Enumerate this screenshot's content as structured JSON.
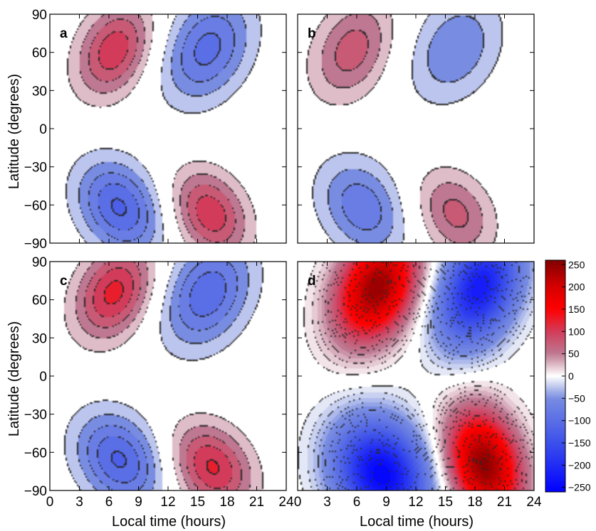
{
  "chart_data": {
    "type": "heatmap",
    "subtype": "filled-contour",
    "xlabel": "Local time (hours)",
    "ylabel": "Latitude (degrees)",
    "xlim": [
      0,
      24
    ],
    "ylim": [
      -90,
      90
    ],
    "xticks": [
      0,
      3,
      6,
      9,
      12,
      15,
      18,
      21,
      24
    ],
    "yticks": [
      90,
      60,
      30,
      0,
      -30,
      -60,
      -90
    ],
    "xtick_labels": [
      "0",
      "3",
      "6",
      "9",
      "12",
      "15",
      "18",
      "21",
      "24"
    ],
    "ytick_labels": [
      "90",
      "60",
      "30",
      "0",
      "−30",
      "−60",
      "−90"
    ],
    "colorbar": {
      "min": -260,
      "max": 260,
      "ticks": [
        250,
        200,
        150,
        100,
        50,
        0,
        -50,
        -100,
        -150,
        -200,
        -250
      ],
      "tick_labels": [
        "250",
        "200",
        "150",
        "100",
        "50",
        "0",
        "−50",
        "−100",
        "−150",
        "−200",
        "−250"
      ],
      "colors": {
        "max": "#800000",
        "pos_mid": "#ff0000",
        "pos_low": "#c43c5a",
        "pos_faint": "#b07888",
        "zero": "#ffffff",
        "neg_faint": "#8888cc",
        "neg_mid": "#3344ee",
        "min": "#0000ff"
      }
    },
    "panels": [
      {
        "letter": "a",
        "blobs": [
          {
            "sign": 1,
            "lt": 6.5,
            "lat": 62,
            "slt": 2.6,
            "slat": 26,
            "amp": 120,
            "skew": -0.03
          },
          {
            "sign": -1,
            "lt": 16.0,
            "lat": 63,
            "slt": 3.1,
            "slat": 30,
            "amp": 110,
            "skew": -0.03
          },
          {
            "sign": -1,
            "lt": 7.0,
            "lat": -62,
            "slt": 2.9,
            "slat": 26,
            "amp": 130,
            "skew": 0.03
          },
          {
            "sign": 1,
            "lt": 16.3,
            "lat": -67,
            "slt": 2.6,
            "slat": 24,
            "amp": 120,
            "skew": 0.03
          }
        ]
      },
      {
        "letter": "b",
        "blobs": [
          {
            "sign": 1,
            "lt": 5.5,
            "lat": 62,
            "slt": 2.8,
            "slat": 28,
            "amp": 90,
            "skew": -0.03
          },
          {
            "sign": -1,
            "lt": 16.0,
            "lat": 63,
            "slt": 3.2,
            "slat": 30,
            "amp": 75,
            "skew": -0.03
          },
          {
            "sign": -1,
            "lt": 6.5,
            "lat": -62,
            "slt": 3.0,
            "slat": 27,
            "amp": 95,
            "skew": 0.03
          },
          {
            "sign": 1,
            "lt": 16.0,
            "lat": -67,
            "slt": 2.7,
            "slat": 24,
            "amp": 85,
            "skew": 0.03
          }
        ]
      },
      {
        "letter": "c",
        "blobs": [
          {
            "sign": 1,
            "lt": 6.5,
            "lat": 66,
            "slt": 2.7,
            "slat": 26,
            "amp": 135,
            "skew": -0.03
          },
          {
            "sign": -1,
            "lt": 16.0,
            "lat": 65,
            "slt": 3.1,
            "slat": 30,
            "amp": 120,
            "skew": -0.03
          },
          {
            "sign": -1,
            "lt": 7.0,
            "lat": -66,
            "slt": 3.0,
            "slat": 26,
            "amp": 130,
            "skew": 0.03
          },
          {
            "sign": 1,
            "lt": 16.5,
            "lat": -72,
            "slt": 2.8,
            "slat": 24,
            "amp": 130,
            "skew": 0.03
          }
        ]
      },
      {
        "letter": "d",
        "blobs": [
          {
            "sign": 1,
            "lt": 8.0,
            "lat": 70,
            "slt": 2.8,
            "slat": 30,
            "amp": 250,
            "skew": -0.03
          },
          {
            "sign": -1,
            "lt": 18.5,
            "lat": 70,
            "slt": 2.8,
            "slat": 32,
            "amp": 230,
            "skew": -0.03
          },
          {
            "sign": -1,
            "lt": 8.5,
            "lat": -78,
            "slt": 3.3,
            "slat": 30,
            "amp": 260,
            "skew": 0.02
          },
          {
            "sign": 1,
            "lt": 19.0,
            "lat": -70,
            "slt": 2.6,
            "slat": 30,
            "amp": 255,
            "skew": 0.02
          }
        ]
      }
    ]
  }
}
